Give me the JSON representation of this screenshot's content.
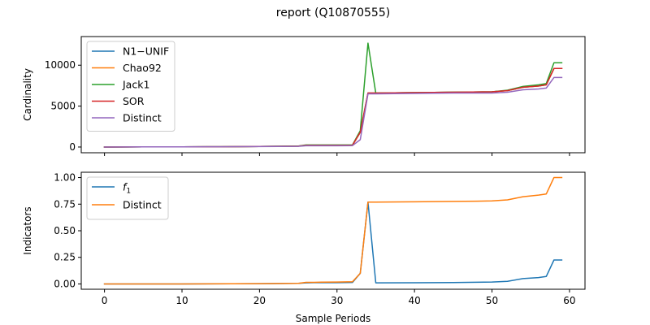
{
  "figure": {
    "title": "report (Q10870555)"
  },
  "chart_data": [
    {
      "type": "line",
      "ylabel": "Cardinality",
      "xlabel": "",
      "xlim": [
        -3,
        62
      ],
      "ylim": [
        -700,
        13500
      ],
      "xticks": [
        0,
        10,
        20,
        30,
        40,
        50,
        60
      ],
      "xtick_labels": [
        "",
        "",
        "",
        "",
        "",
        "",
        ""
      ],
      "yticks": [
        0,
        5000,
        10000
      ],
      "ytick_labels": [
        "0",
        "5000",
        "10000"
      ],
      "grid": false,
      "legend_position": "upper-left",
      "series": [
        {
          "name": "N1−UNIF",
          "color": "#1f77b4",
          "x": [
            0,
            5,
            10,
            15,
            20,
            25,
            26,
            27,
            28,
            30,
            32,
            33,
            34,
            35,
            40,
            45,
            50,
            52,
            54,
            56,
            57,
            58,
            59
          ],
          "values": [
            0,
            10,
            20,
            30,
            60,
            100,
            200,
            200,
            200,
            200,
            220,
            1800,
            6600,
            6600,
            6650,
            6700,
            6750,
            6900,
            7300,
            7450,
            7600,
            9600,
            9600
          ]
        },
        {
          "name": "Chao92",
          "color": "#ff7f0e",
          "x": [
            0,
            5,
            10,
            15,
            20,
            25,
            26,
            27,
            28,
            30,
            32,
            33,
            34,
            35,
            40,
            45,
            50,
            52,
            54,
            56,
            57,
            58,
            59
          ],
          "values": [
            0,
            10,
            20,
            30,
            60,
            100,
            200,
            200,
            200,
            200,
            220,
            1800,
            6600,
            6600,
            6650,
            6700,
            6750,
            6900,
            7300,
            7450,
            7600,
            9600,
            9600
          ]
        },
        {
          "name": "Jack1",
          "color": "#2ca02c",
          "x": [
            0,
            5,
            10,
            15,
            20,
            25,
            26,
            27,
            28,
            30,
            32,
            33,
            34,
            35,
            40,
            45,
            50,
            52,
            54,
            56,
            57,
            58,
            59
          ],
          "values": [
            0,
            10,
            20,
            30,
            60,
            120,
            250,
            250,
            250,
            250,
            260,
            2000,
            12700,
            6600,
            6650,
            6700,
            6750,
            6950,
            7400,
            7600,
            7750,
            10300,
            10300
          ]
        },
        {
          "name": "SOR",
          "color": "#d62728",
          "x": [
            0,
            5,
            10,
            15,
            20,
            25,
            26,
            27,
            28,
            30,
            32,
            33,
            34,
            35,
            40,
            45,
            50,
            52,
            54,
            56,
            57,
            58,
            59
          ],
          "values": [
            0,
            10,
            20,
            30,
            60,
            100,
            200,
            200,
            200,
            200,
            220,
            1800,
            6600,
            6600,
            6650,
            6700,
            6750,
            6900,
            7300,
            7450,
            7600,
            9600,
            9600
          ]
        },
        {
          "name": "Distinct",
          "color": "#9467bd",
          "x": [
            0,
            5,
            10,
            15,
            20,
            25,
            26,
            27,
            28,
            30,
            32,
            33,
            34,
            35,
            40,
            45,
            50,
            52,
            54,
            56,
            57,
            58,
            59
          ],
          "values": [
            0,
            10,
            20,
            30,
            50,
            80,
            150,
            150,
            150,
            150,
            170,
            900,
            6500,
            6500,
            6550,
            6600,
            6600,
            6700,
            7000,
            7100,
            7200,
            8500,
            8500
          ]
        }
      ]
    },
    {
      "type": "line",
      "ylabel": "Indicators",
      "xlabel": "Sample Periods",
      "xlim": [
        -3,
        62
      ],
      "ylim": [
        -0.05,
        1.05
      ],
      "xticks": [
        0,
        10,
        20,
        30,
        40,
        50,
        60
      ],
      "xtick_labels": [
        "0",
        "10",
        "20",
        "30",
        "40",
        "50",
        "60"
      ],
      "yticks": [
        0,
        0.25,
        0.5,
        0.75,
        1.0
      ],
      "ytick_labels": [
        "0.00",
        "0.25",
        "0.50",
        "0.75",
        "1.00"
      ],
      "grid": false,
      "legend_position": "upper-left",
      "series": [
        {
          "name": "f",
          "name_subscript": "1",
          "color": "#1f77b4",
          "x": [
            0,
            10,
            20,
            25,
            26,
            27,
            28,
            30,
            32,
            33,
            34,
            35,
            40,
            45,
            48,
            50,
            52,
            54,
            56,
            57,
            58,
            59
          ],
          "values": [
            0.0,
            0.0,
            0.003,
            0.005,
            0.01,
            0.012,
            0.012,
            0.012,
            0.014,
            0.1,
            0.77,
            0.01,
            0.011,
            0.013,
            0.016,
            0.018,
            0.025,
            0.05,
            0.06,
            0.07,
            0.225,
            0.225
          ]
        },
        {
          "name": "Distinct",
          "color": "#ff7f0e",
          "x": [
            0,
            10,
            20,
            25,
            26,
            27,
            28,
            30,
            32,
            33,
            34,
            35,
            40,
            45,
            48,
            50,
            52,
            54,
            56,
            57,
            58,
            59
          ],
          "values": [
            0.0,
            0.0,
            0.003,
            0.005,
            0.015,
            0.015,
            0.017,
            0.018,
            0.02,
            0.1,
            0.77,
            0.77,
            0.772,
            0.776,
            0.778,
            0.78,
            0.79,
            0.82,
            0.835,
            0.845,
            1.0,
            1.0
          ]
        }
      ]
    }
  ]
}
